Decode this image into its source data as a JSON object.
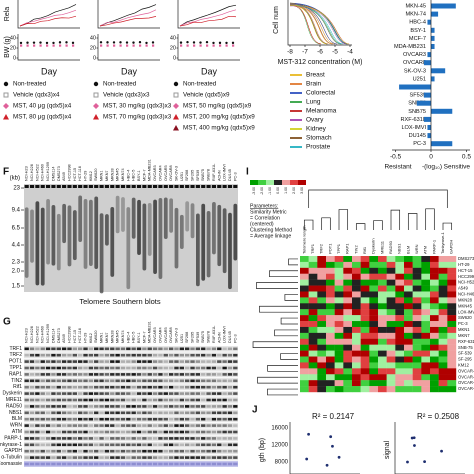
{
  "growth": {
    "top_label": "Rela",
    "y_label": "BW (g)",
    "x_label": "Day",
    "yticks": [
      40,
      20,
      0
    ],
    "legends": [
      [
        {
          "label": "Non-treated",
          "color": "#111111"
        },
        {
          "label": "Vehicle (qdx3)x4",
          "color": "#999999"
        },
        {
          "label": "MST, 40 μg (qdx5)x4",
          "color": "#e0609a"
        },
        {
          "label": "MST, 80 μg (qdx5)x4",
          "color": "#d0202a"
        }
      ],
      [
        {
          "label": "Non-treated",
          "color": "#111111"
        },
        {
          "label": "Vehicle (qdx3)x3",
          "color": "#999999"
        },
        {
          "label": "MST, 30 mg/kg (qdx3)x3",
          "color": "#e0609a"
        },
        {
          "label": "MST, 70 mg/kg (qdx3)x3",
          "color": "#d0202a"
        }
      ],
      [
        {
          "label": "Non-treated",
          "color": "#111111"
        },
        {
          "label": "Vehicle (qdx5)x9",
          "color": "#999999"
        },
        {
          "label": "MST, 50 mg/kg (qdx5)x9",
          "color": "#e0609a"
        },
        {
          "label": "MST, 200 mg/kg (qdx5)x9",
          "color": "#d0202a"
        },
        {
          "label": "MST, 400 mg/kg (qdx5)x9",
          "color": "#8a1020"
        }
      ]
    ]
  },
  "sensitivity": {
    "y_label": "Cell num",
    "x_label": "MST-312 concentration (M)",
    "xticks": [
      -8,
      -7,
      -6,
      -5,
      -4
    ],
    "tissues": [
      {
        "name": "Breast",
        "color": "#e8b820"
      },
      {
        "name": "Brain",
        "color": "#e07830"
      },
      {
        "name": "Colorectal",
        "color": "#3050c0"
      },
      {
        "name": "Lung",
        "color": "#30a040"
      },
      {
        "name": "Melanoma",
        "color": "#c02020"
      },
      {
        "name": "Ovary",
        "color": "#a040b0"
      },
      {
        "name": "Kidney",
        "color": "#d0d020"
      },
      {
        "name": "Stomach",
        "color": "#805020"
      },
      {
        "name": "Prostate",
        "color": "#20b0c0"
      }
    ],
    "cell_lines": [
      "MKN-45",
      "MKN-74",
      "HBC-4",
      "BSY-1",
      "MCF-7",
      "MDA-MB231",
      "OVCAR3",
      "OVCAR8",
      "SK-OV-3",
      "U251",
      "SF295",
      "SF539",
      "SNB78",
      "SNB75",
      "RXF-631L",
      "LOX-IMVI",
      "DU145",
      "PC-3"
    ],
    "bar_values": [
      0.35,
      0.1,
      -0.05,
      0.05,
      0.05,
      0.05,
      -0.05,
      -0.1,
      0.2,
      0.05,
      -0.45,
      -0.1,
      -0.2,
      0.3,
      -0.1,
      -0.05,
      -0.05,
      0.3
    ],
    "bar_color": "#2070c0",
    "bar_xlim": [
      -0.55,
      0.55
    ],
    "bar_xticks": [
      -0.5,
      0,
      0.5
    ],
    "resistant": "Resistant",
    "axis_label": "-(log₁₀)",
    "sensitive": "Sensitive"
  },
  "southern": {
    "panel": "F",
    "kb_label": "(kb)",
    "kb": [
      "23",
      "9.4",
      "6.5",
      "4.4",
      "2.3",
      "2.0",
      "1.5"
    ],
    "caption": "Telomere Southern blots"
  },
  "cell_lines": [
    "NCI-H23",
    "NCI-H226",
    "NCI-H522",
    "NCI-H460",
    "NCI-H1299",
    "DMS114",
    "DMS273",
    "A549",
    "HCC2998",
    "HCT-15",
    "HCT-116",
    "HT-29",
    "KM12",
    "SW620",
    "MKN1",
    "MKN7",
    "MKN28",
    "MKN45",
    "MKN74",
    "HBC-4",
    "HBC-5",
    "BSY-1",
    "MCF-7",
    "MDA-MB231",
    "OVCAR3",
    "OVCAR4",
    "OVCAR5",
    "OVCAR8",
    "SK-OV-3",
    "U251",
    "SF268",
    "SF295",
    "SF539",
    "SNB75",
    "SNB78",
    "RXF-631L",
    "ACHN",
    "LOX-IMVI",
    "DU145",
    "PC-3"
  ],
  "western": {
    "panel": "G",
    "proteins": [
      "TRF1",
      "TRF2",
      "POT1",
      "TPP1",
      "RAP1",
      "TIN2",
      "Rif1",
      "Dyskerin",
      "MRE11",
      "RAD50",
      "NBS1",
      "BLM",
      "WRN",
      "ATM",
      "PARP-1",
      "Tankyrase-1",
      "GAPDH",
      "α-Tubulin",
      "Coomassie"
    ]
  },
  "cluster": {
    "panel": "I",
    "scale": [
      "-3.00",
      "-2.00",
      "-1.00",
      "0.00",
      "1.00",
      "2.00",
      "3.00"
    ],
    "parameters": [
      "Parameters:",
      "Similarity Metric",
      "= Correlation",
      "(centered)",
      "Clustering Method",
      "= Average linkage"
    ],
    "columns": [
      "Telomere length",
      "TRF1",
      "TRF2",
      "POT1",
      "TPP1",
      "RAP1",
      "TIN2",
      "Rif1",
      "Dyskerin",
      "MRE11",
      "RAD50",
      "NBS1",
      "BLM",
      "WRN",
      "ATM",
      "PARP-1",
      "Tankyrase-1",
      "GAPDH"
    ],
    "rows": [
      "DMS273",
      "HT-29",
      "HCT-15",
      "HCC2998",
      "NCI-H522",
      "A549",
      "NCI-H460",
      "MKN28",
      "MKN45",
      "LOX-IMVI",
      "SW620",
      "PC-3",
      "MKN1",
      "MKN7",
      "RXF-631L",
      "SNB-75",
      "SF-539",
      "SF-295",
      "KM12",
      "OVCAR-5",
      "OVCAR-8",
      "OVCAR-4",
      "OVCAR-3"
    ]
  },
  "correlation": {
    "panel": "J",
    "plots": [
      {
        "r2": "R² = 0.2147",
        "y_label": "gth (bp)",
        "yticks": [
          16000,
          12000,
          8000
        ]
      },
      {
        "r2": "R² = 0.2508",
        "y_label": "signal"
      }
    ]
  }
}
